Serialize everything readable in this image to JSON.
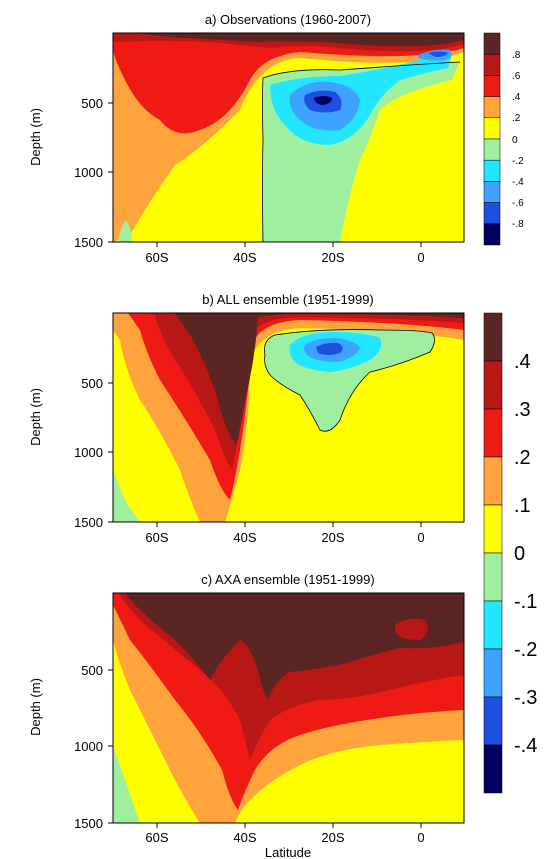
{
  "figure": {
    "colors": {
      "c_neg4": "#00005e",
      "c_neg3": "#1f4fe0",
      "c_neg2": "#3da3ff",
      "c_neg1": "#22e6ff",
      "c_neg0": "#9ef09e",
      "c_pos0": "#ffff00",
      "c_pos1": "#ffa33d",
      "c_pos2": "#f01a14",
      "c_pos3": "#b81716",
      "c_pos4": "#5a2523",
      "contour": "#000000"
    }
  },
  "chart_data": [
    {
      "type": "heatmap",
      "panel": "a",
      "title": "a) Observations (1960-2007)",
      "xlabel": "",
      "ylabel": "Depth (m)",
      "xticks": [
        "60S",
        "40S",
        "20S",
        "0"
      ],
      "xtick_values": [
        -60,
        -40,
        -20,
        0
      ],
      "yticks": [
        "500",
        "1000",
        "1500"
      ],
      "ytick_values": [
        500,
        1000,
        1500
      ],
      "xlim": [
        -70,
        10
      ],
      "ylim": [
        0,
        1500
      ],
      "colorbar_labels": [
        ".8",
        ".6",
        ".4",
        ".2",
        "0",
        "-.2",
        "-.4",
        "-.6",
        "-.8"
      ],
      "colorbar_values": [
        0.8,
        0.6,
        0.4,
        0.2,
        0,
        -0.2,
        -0.4,
        -0.6,
        -0.8
      ]
    },
    {
      "type": "heatmap",
      "panel": "b",
      "title": "b) ALL ensemble (1951-1999)",
      "xlabel": "",
      "ylabel": "Depth (m)",
      "xticks": [
        "60S",
        "40S",
        "20S",
        "0"
      ],
      "xtick_values": [
        -60,
        -40,
        -20,
        0
      ],
      "yticks": [
        "500",
        "1000",
        "1500"
      ],
      "ytick_values": [
        500,
        1000,
        1500
      ],
      "xlim": [
        -70,
        10
      ],
      "ylim": [
        0,
        1500
      ],
      "colorbar_labels": [
        ".4",
        ".3",
        ".2",
        ".1",
        "0",
        "-.1",
        "-.2",
        "-.3",
        "-.4"
      ],
      "colorbar_values": [
        0.4,
        0.3,
        0.2,
        0.1,
        0,
        -0.1,
        -0.2,
        -0.3,
        -0.4
      ]
    },
    {
      "type": "heatmap",
      "panel": "c",
      "title": "c) AXA ensemble (1951-1999)",
      "xlabel": "Latitude",
      "ylabel": "Depth (m)",
      "xticks": [
        "60S",
        "40S",
        "20S",
        "0"
      ],
      "xtick_values": [
        -60,
        -40,
        -20,
        0
      ],
      "yticks": [
        "500",
        "1000",
        "1500"
      ],
      "ytick_values": [
        500,
        1000,
        1500
      ],
      "xlim": [
        -70,
        10
      ],
      "ylim": [
        0,
        1500
      ]
    }
  ]
}
